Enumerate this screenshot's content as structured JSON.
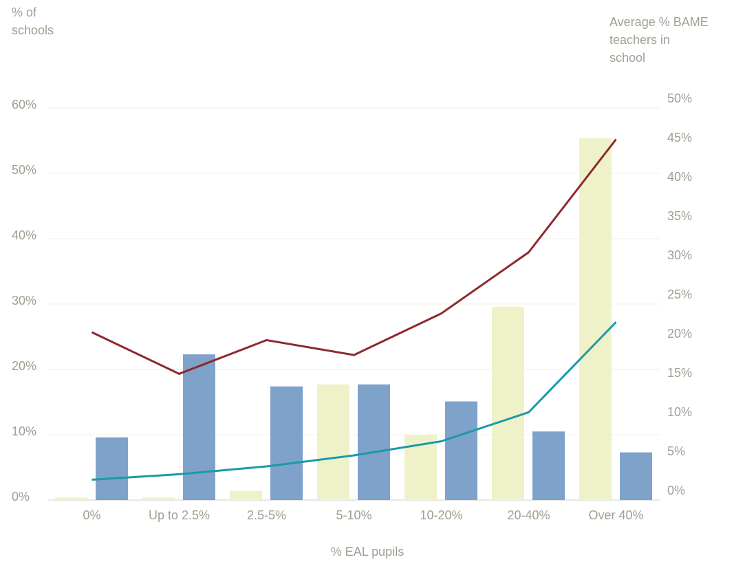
{
  "chart_data": {
    "type": "bar",
    "ylabel": [
      "% of",
      "schools"
    ],
    "y2label": [
      "Average % BAME",
      "teachers in",
      "school"
    ],
    "xlabel": "% EAL pupils",
    "categories": [
      "0%",
      "Up to 2.5%",
      "2.5-5%",
      "5-10%",
      "10-20%",
      "20-40%",
      "Over 40%"
    ],
    "series": [
      {
        "type": "bar",
        "color": "#eff2c9",
        "values": [
          0.4,
          0.4,
          1.4,
          17.7,
          10.0,
          29.6,
          55.4
        ]
      },
      {
        "type": "bar",
        "color": "#7fa2cb",
        "values": [
          9.6,
          22.3,
          17.4,
          17.7,
          15.1,
          10.5,
          7.3
        ]
      },
      {
        "type": "line",
        "axis": "y2",
        "color": "#8b2a2e",
        "values": [
          21.4,
          16.1,
          20.4,
          18.5,
          23.8,
          31.6,
          46.0
        ]
      },
      {
        "type": "line",
        "axis": "y2",
        "color": "#1a9aa8",
        "values": [
          2.6,
          3.3,
          4.3,
          5.7,
          7.5,
          11.2,
          22.7
        ]
      }
    ],
    "ylim": [
      0,
      60
    ],
    "yticks": [
      {
        "value": 0,
        "label": "0%"
      },
      {
        "value": 10,
        "label": "10%"
      },
      {
        "value": 20,
        "label": "20%"
      },
      {
        "value": 30,
        "label": "30%"
      },
      {
        "value": 40,
        "label": "40%"
      },
      {
        "value": 50,
        "label": "50%"
      },
      {
        "value": 60,
        "label": "60%"
      }
    ],
    "y2lim": [
      0,
      50
    ],
    "y2ticks": [
      {
        "value": 0,
        "label": "0%"
      },
      {
        "value": 5,
        "label": "5%"
      },
      {
        "value": 10,
        "label": "10%"
      },
      {
        "value": 15,
        "label": "15%"
      },
      {
        "value": 20,
        "label": "20%"
      },
      {
        "value": 25,
        "label": "25%"
      },
      {
        "value": 30,
        "label": "30%"
      },
      {
        "value": 35,
        "label": "35%"
      },
      {
        "value": 40,
        "label": "40%"
      },
      {
        "value": 45,
        "label": "45%"
      },
      {
        "value": 50,
        "label": "50%"
      }
    ],
    "grid": true
  }
}
